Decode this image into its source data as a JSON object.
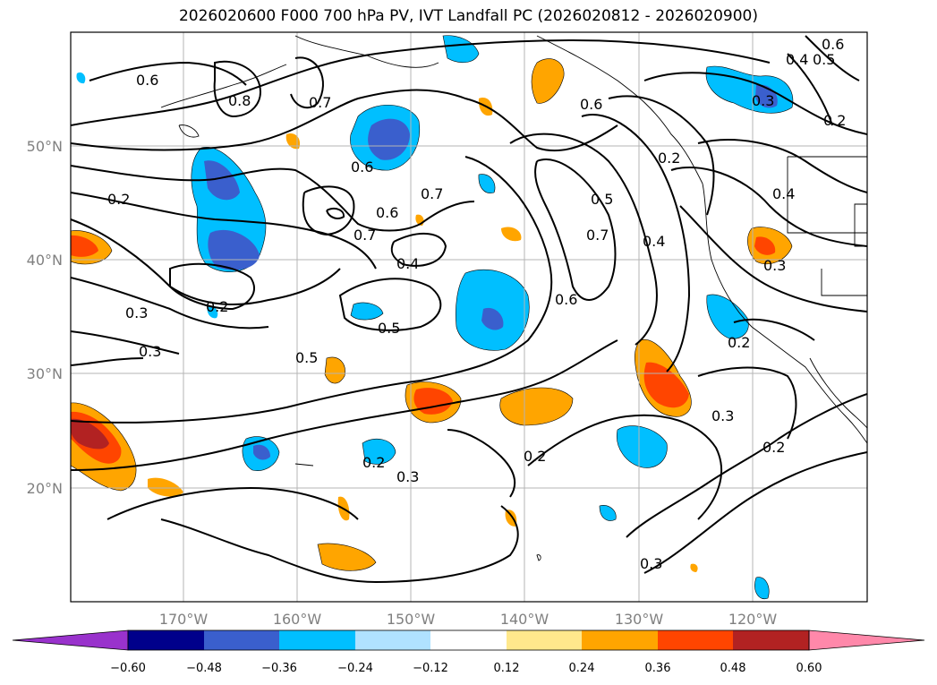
{
  "title": "2026020600 F000 700 hPa PV, IVT Landfall PC (2026020812 - 2026020900)",
  "map": {
    "lat_labels": [
      "50°N",
      "40°N",
      "30°N",
      "20°N"
    ],
    "lon_labels": [
      "170°W",
      "160°W",
      "150°W",
      "140°W",
      "130°W",
      "120°W"
    ],
    "contour_labels": [
      "0.6",
      "0.8",
      "0.7",
      "0.6",
      "0.6",
      "0.7",
      "0.2",
      "0.4",
      "0.6",
      "0.7",
      "0.5",
      "0.5",
      "0.2",
      "0.3",
      "0.3",
      "0.5",
      "0.6",
      "0.7",
      "0.4",
      "0.2",
      "0.3",
      "0.2",
      "0.3",
      "0.3",
      "0.2",
      "0.2",
      "0.4",
      "0.6",
      "0.5",
      "0.2",
      "0.3",
      "0.4"
    ]
  },
  "colorbar": {
    "tick_labels": [
      "−0.60",
      "−0.48",
      "−0.36",
      "−0.24",
      "−0.12",
      "0.12",
      "0.24",
      "0.36",
      "0.48",
      "0.60"
    ],
    "colors": [
      "#9932cc",
      "#00008b",
      "#3a5fcd",
      "#00bfff",
      "#b0e2ff",
      "#ffffff",
      "#ffe88c",
      "#ffa500",
      "#ff4500",
      "#b22222",
      "#ff88aa"
    ]
  },
  "colors": {
    "contour": "#000000",
    "grid": "#b4b4b4",
    "axis_label": "#808080"
  }
}
